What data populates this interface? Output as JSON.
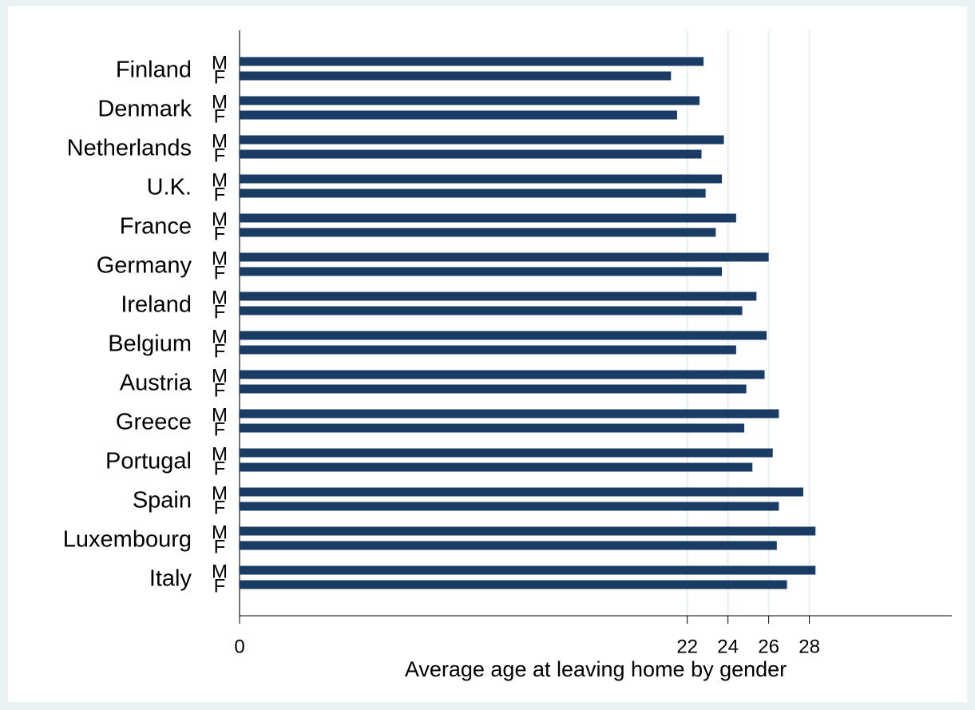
{
  "chart_data": {
    "type": "bar",
    "orientation": "horizontal",
    "xlabel": "Average age at leaving home by gender",
    "categories": [
      "Finland",
      "Denmark",
      "Netherlands",
      "U.K.",
      "France",
      "Germany",
      "Ireland",
      "Belgium",
      "Austria",
      "Greece",
      "Portugal",
      "Spain",
      "Luxembourg",
      "Italy"
    ],
    "series": [
      {
        "name": "M",
        "color": "#1a3b63",
        "values": [
          22.8,
          22.6,
          23.8,
          23.7,
          24.4,
          26.0,
          25.4,
          25.9,
          25.8,
          26.5,
          26.2,
          27.7,
          28.3,
          28.3
        ]
      },
      {
        "name": "F",
        "color": "#1a3b63",
        "values": [
          21.2,
          21.5,
          22.7,
          22.9,
          23.4,
          23.7,
          24.7,
          24.4,
          24.9,
          24.8,
          25.2,
          26.5,
          26.4,
          26.9
        ]
      }
    ],
    "xlim": [
      0,
      35
    ],
    "xticks": [
      0,
      22,
      24,
      26,
      28
    ],
    "grid": true
  }
}
